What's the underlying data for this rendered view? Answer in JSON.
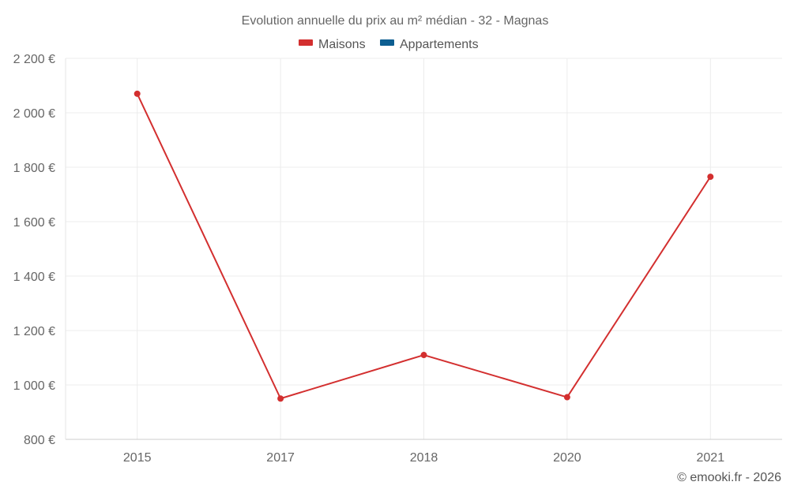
{
  "chart_data": {
    "type": "line",
    "title": "Evolution annuelle du prix au m² médian - 32 - Magnas",
    "categories": [
      "2015",
      "2017",
      "2018",
      "2020",
      "2021"
    ],
    "series": [
      {
        "name": "Maisons",
        "color": "#d32f2f",
        "values": [
          2070,
          950,
          1110,
          955,
          1765
        ]
      },
      {
        "name": "Appartements",
        "color": "#0d5e91",
        "values": [
          null,
          null,
          null,
          null,
          null
        ]
      }
    ],
    "ylim": [
      800,
      2200
    ],
    "yticks": [
      800,
      1000,
      1200,
      1400,
      1600,
      1800,
      2000,
      2200
    ],
    "ytick_labels": [
      "800 €",
      "1 000 €",
      "1 200 €",
      "1 400 €",
      "1 600 €",
      "1 800 €",
      "2 000 €",
      "2 200 €"
    ],
    "grid": true,
    "legend_position": "top-center"
  },
  "credit": "© emooki.fr - 2026"
}
